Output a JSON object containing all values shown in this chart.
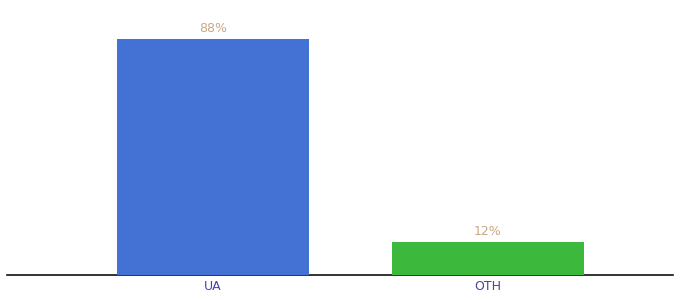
{
  "categories": [
    "UA",
    "OTH"
  ],
  "values": [
    88,
    12
  ],
  "bar_colors": [
    "#4472d4",
    "#3cb83c"
  ],
  "label_color": "#c8a882",
  "title": "",
  "title_fontsize": 10,
  "title_color": "#555555",
  "ylim": [
    0,
    100
  ],
  "bar_width": 0.28,
  "background_color": "#ffffff",
  "tick_color": "#4444aa",
  "label_fontsize": 9,
  "axis_line_color": "#111111",
  "x_positions": [
    0.35,
    0.75
  ]
}
